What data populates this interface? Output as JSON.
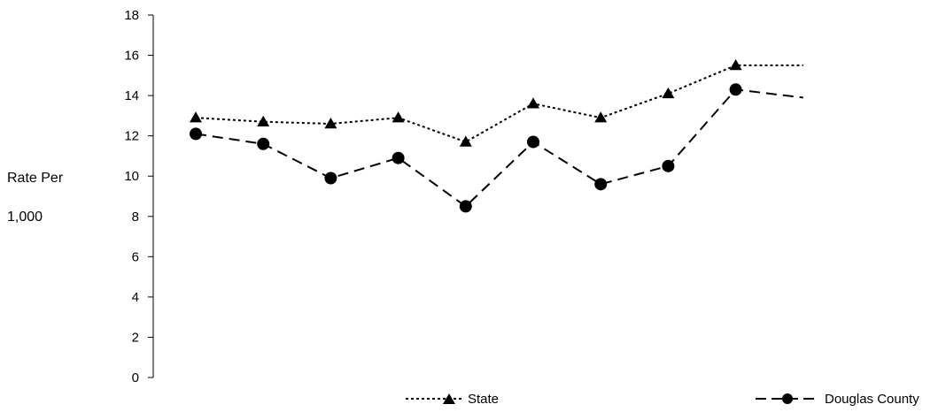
{
  "chart_data": {
    "type": "line",
    "ylabel_lines": [
      "Rate Per",
      "1,000"
    ],
    "ylim": [
      0,
      18
    ],
    "yticks": [
      0,
      2,
      4,
      6,
      8,
      10,
      12,
      14,
      16,
      18
    ],
    "x": [
      1,
      2,
      3,
      4,
      5,
      6,
      7,
      8,
      9,
      10
    ],
    "grid": false,
    "legend": "bottom",
    "series": [
      {
        "name": "State",
        "color": "#000000",
        "marker": "triangle",
        "line_style": "dotted",
        "values": [
          12.9,
          12.7,
          12.6,
          12.9,
          11.7,
          13.6,
          12.9,
          14.1,
          15.5,
          15.5
        ]
      },
      {
        "name": "Douglas County",
        "color": "#000000",
        "marker": "circle",
        "line_style": "dashed",
        "values": [
          12.1,
          11.6,
          9.9,
          10.9,
          8.5,
          11.7,
          9.6,
          10.5,
          14.3,
          13.9
        ]
      }
    ]
  }
}
